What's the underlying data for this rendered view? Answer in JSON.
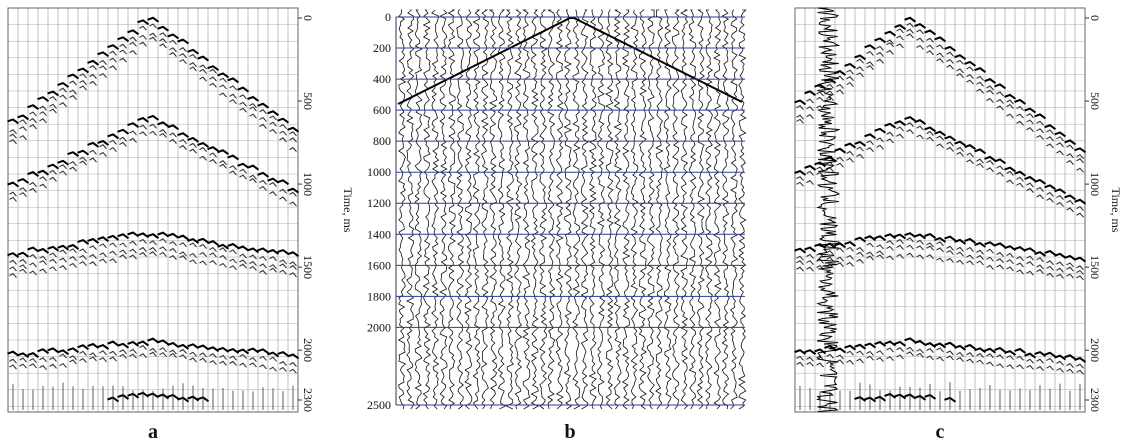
{
  "panels": [
    {
      "label": "a",
      "axis_title": "Time, ms",
      "ticks": [
        0,
        500,
        1000,
        1500,
        2000,
        2300
      ]
    },
    {
      "label": "b",
      "ticks": [
        0,
        200,
        400,
        600,
        800,
        1000,
        1200,
        1400,
        1600,
        1800,
        2000,
        2500
      ]
    },
    {
      "label": "c",
      "axis_title": "Time, ms",
      "ticks": [
        0,
        500,
        1000,
        1500,
        2000,
        2300
      ]
    }
  ]
}
